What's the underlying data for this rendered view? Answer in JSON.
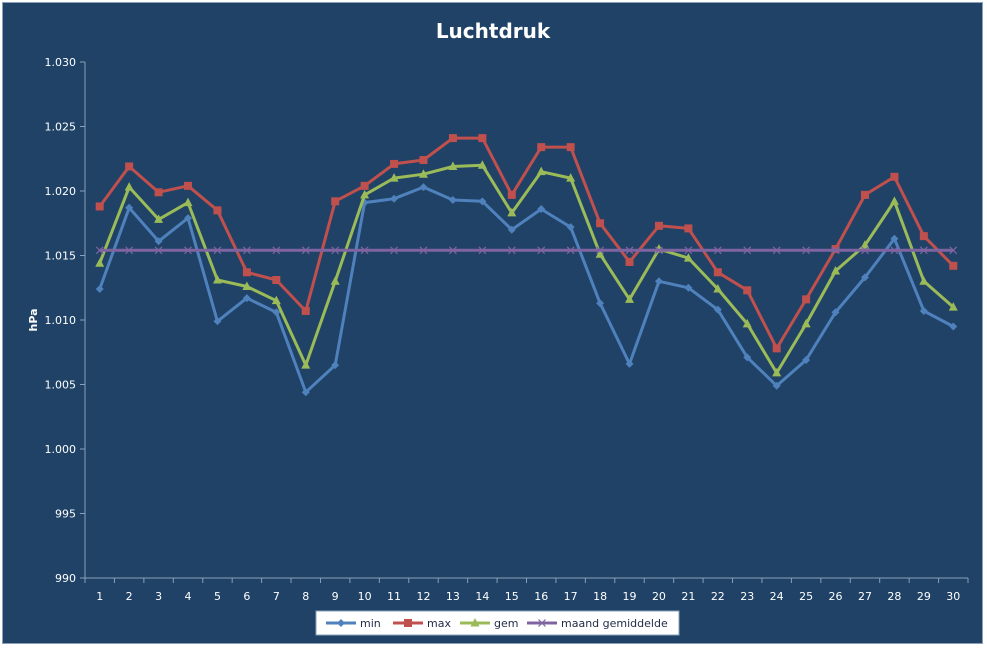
{
  "chart_data": {
    "type": "line",
    "title": "Luchtdruk",
    "xlabel": "",
    "ylabel": "hPa",
    "x": [
      1,
      2,
      3,
      4,
      5,
      6,
      7,
      8,
      9,
      10,
      11,
      12,
      13,
      14,
      15,
      16,
      17,
      18,
      19,
      20,
      21,
      22,
      23,
      24,
      25,
      26,
      27,
      28,
      29,
      30
    ],
    "ylim": [
      990,
      1030
    ],
    "yticks": [
      990,
      995,
      1000,
      1005,
      1010,
      1015,
      1020,
      1025,
      1030
    ],
    "ytick_labels": [
      "990",
      "995",
      "1.000",
      "1.005",
      "1.010",
      "1.015",
      "1.020",
      "1.025",
      "1.030"
    ],
    "grid": false,
    "legend": "bottom",
    "series": [
      {
        "name": "min",
        "color": "#4f81bd",
        "marker": "diamond",
        "values": [
          1012.4,
          1018.7,
          1016.1,
          1017.9,
          1009.9,
          1011.7,
          1010.6,
          1004.4,
          1006.5,
          1019.1,
          1019.4,
          1020.3,
          1019.3,
          1019.2,
          1017.0,
          1018.6,
          1017.2,
          1011.3,
          1006.6,
          1013.0,
          1012.5,
          1010.8,
          1007.1,
          1004.9,
          1006.9,
          1010.6,
          1013.3,
          1016.3,
          1010.7,
          1009.5
        ]
      },
      {
        "name": "max",
        "color": "#c0504d",
        "marker": "square",
        "values": [
          1018.8,
          1021.9,
          1019.9,
          1020.4,
          1018.5,
          1013.7,
          1013.1,
          1010.7,
          1019.2,
          1020.4,
          1022.1,
          1022.4,
          1024.1,
          1024.1,
          1019.7,
          1023.4,
          1023.4,
          1017.5,
          1014.5,
          1017.3,
          1017.1,
          1013.7,
          1012.3,
          1007.8,
          1011.6,
          1015.5,
          1019.7,
          1021.1,
          1016.5,
          1014.2
        ]
      },
      {
        "name": "gem",
        "color": "#9bbb59",
        "marker": "triangle",
        "values": [
          1014.4,
          1020.3,
          1017.8,
          1019.1,
          1013.1,
          1012.6,
          1011.5,
          1006.5,
          1013.0,
          1019.7,
          1021.0,
          1021.3,
          1021.9,
          1022.0,
          1018.3,
          1021.5,
          1021.0,
          1015.1,
          1011.6,
          1015.5,
          1014.8,
          1012.4,
          1009.7,
          1005.9,
          1009.7,
          1013.8,
          1015.8,
          1019.2,
          1013.0,
          1011.0
        ]
      },
      {
        "name": "maand gemiddelde",
        "color": "#8064a2",
        "marker": "x",
        "values": [
          1015.4,
          1015.4,
          1015.4,
          1015.4,
          1015.4,
          1015.4,
          1015.4,
          1015.4,
          1015.4,
          1015.4,
          1015.4,
          1015.4,
          1015.4,
          1015.4,
          1015.4,
          1015.4,
          1015.4,
          1015.4,
          1015.4,
          1015.4,
          1015.4,
          1015.4,
          1015.4,
          1015.4,
          1015.4,
          1015.4,
          1015.4,
          1015.4,
          1015.4,
          1015.4
        ]
      }
    ]
  }
}
